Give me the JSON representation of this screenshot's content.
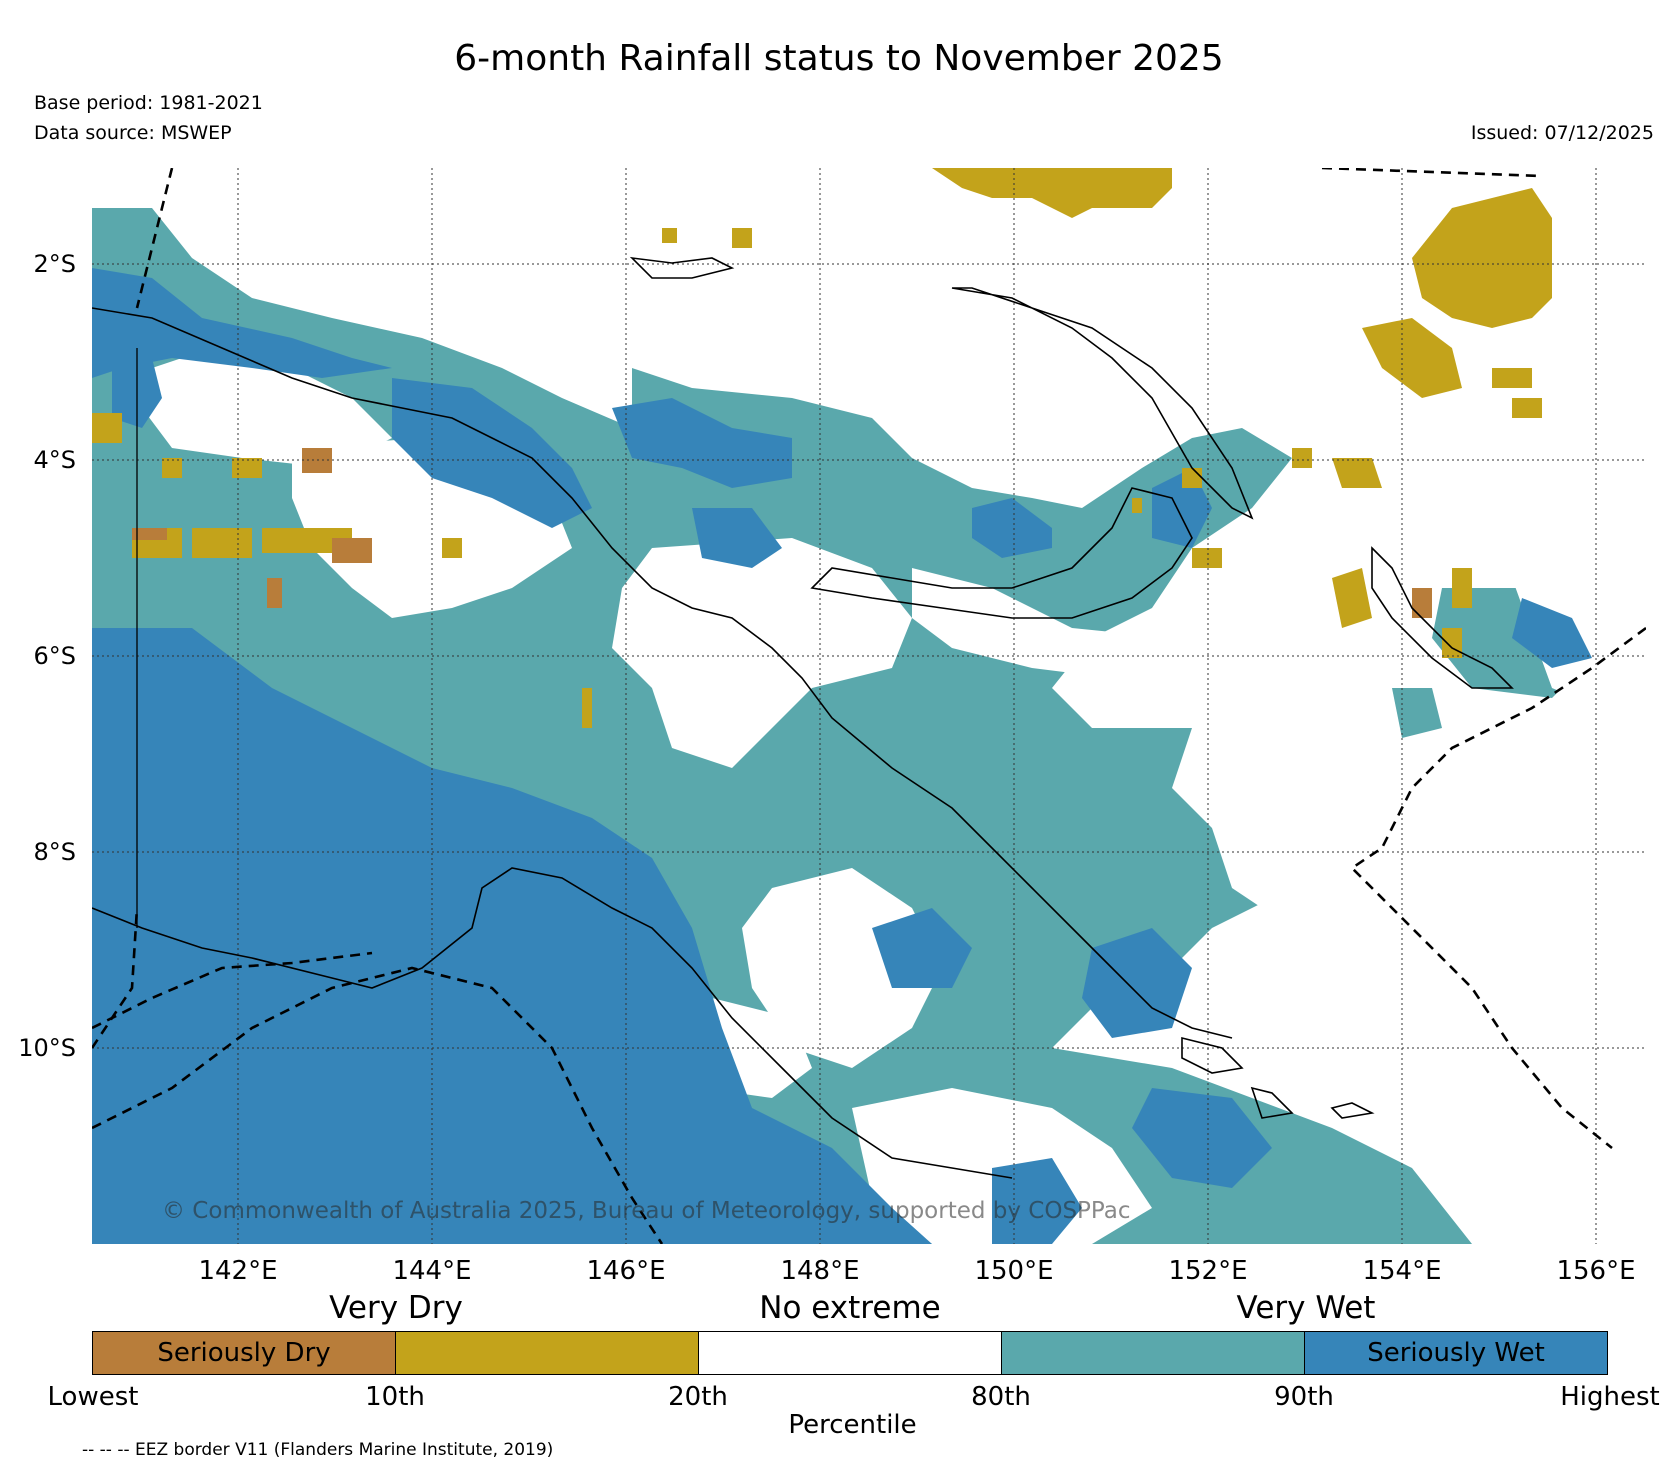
{
  "title": "6-month Rainfall status to November 2025",
  "base_period": "Base period: 1981-2021",
  "data_source": "Data source: MSWEP",
  "issued": "Issued: 07/12/2025",
  "lat_labels": [
    "2°S",
    "4°S",
    "6°S",
    "8°S",
    "10°S"
  ],
  "lon_labels": [
    "142°E",
    "144°E",
    "146°E",
    "148°E",
    "150°E",
    "152°E",
    "154°E",
    "156°E"
  ],
  "copyright": "© Commonwealth of Australia 2025, Bureau of Meteorology, supported by COSPPac",
  "categories": {
    "very_dry": "Very Dry",
    "no_extreme": "No extreme",
    "very_wet": "Very Wet"
  },
  "legend": [
    {
      "label": "Seriously Dry",
      "color": "#b87d3a"
    },
    {
      "label": "",
      "color": "#c3a31b"
    },
    {
      "label": "",
      "color": "#ffffff"
    },
    {
      "label": "",
      "color": "#5aa8ac"
    },
    {
      "label": "Seriously Wet",
      "color": "#3685b9"
    }
  ],
  "percentile_ticks": [
    "Lowest",
    "10th",
    "20th",
    "80th",
    "90th",
    "Highest"
  ],
  "percentile_label": "Percentile",
  "eez_note": "-- -- -- EEZ border V11 (Flanders Marine Institute, 2019)",
  "colors": {
    "seriously_dry": "#b87d3a",
    "very_dry": "#c3a31b",
    "very_wet": "#5aa8ac",
    "seriously_wet": "#3685b9"
  }
}
